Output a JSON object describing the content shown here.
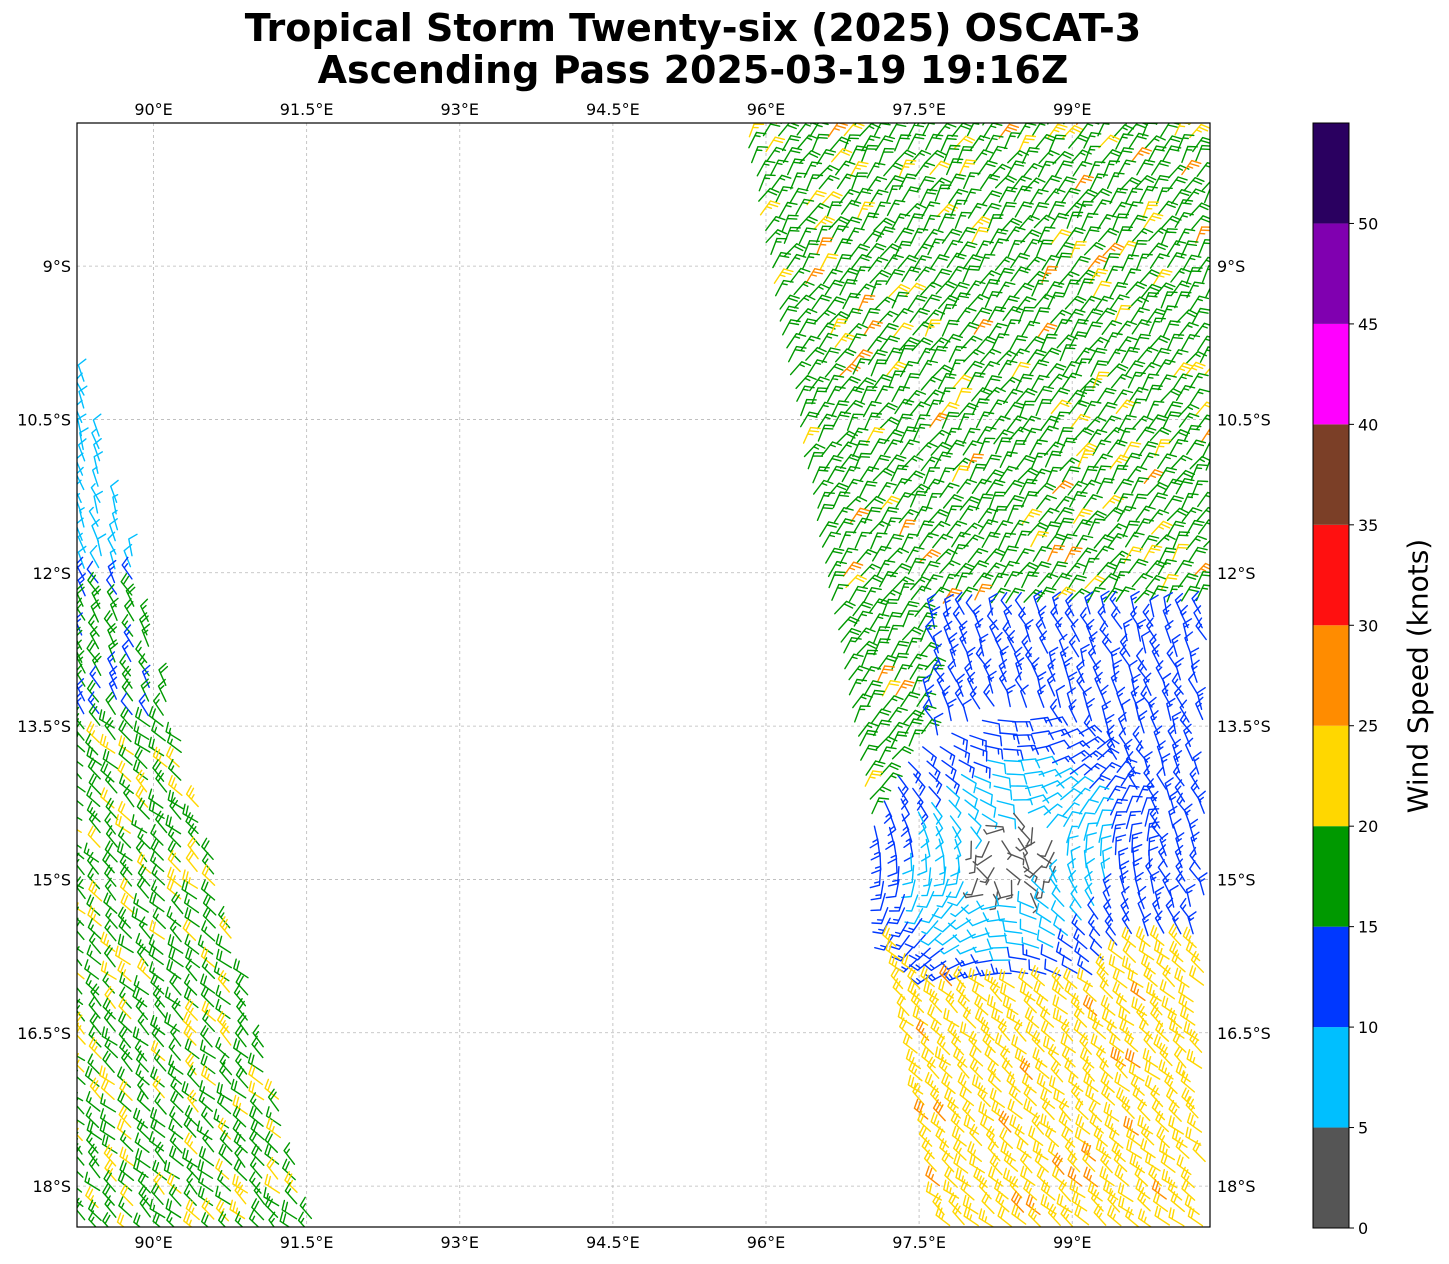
{
  "title": {
    "line1": "Tropical Storm Twenty-six (2025) OSCAT-3",
    "line2": "Ascending Pass 2025-03-19 19:16Z"
  },
  "map": {
    "lon_range": [
      89.25,
      100.35
    ],
    "lat_range": [
      -18.4,
      -7.6
    ],
    "lon_ticks": [
      90,
      91.5,
      93,
      94.5,
      96,
      97.5,
      99
    ],
    "lon_tick_labels": [
      "90°E",
      "91.5°E",
      "93°E",
      "94.5°E",
      "96°E",
      "97.5°E",
      "99°E"
    ],
    "lat_ticks": [
      -9,
      -10.5,
      -12,
      -13.5,
      -15,
      -16.5,
      -18
    ],
    "lat_tick_labels": [
      "9°S",
      "10.5°S",
      "12°S",
      "13.5°S",
      "15°S",
      "16.5°S",
      "18°S"
    ],
    "gridlines": true,
    "center_marker": {
      "lon": 98.4,
      "lat": -14.8
    }
  },
  "colorbar": {
    "label": "Wind Speed (knots)",
    "range": [
      0,
      55
    ],
    "bins": [
      {
        "from": 0,
        "to": 5,
        "color": "#555555"
      },
      {
        "from": 5,
        "to": 10,
        "color": "#00bfff"
      },
      {
        "from": 10,
        "to": 15,
        "color": "#0038ff"
      },
      {
        "from": 15,
        "to": 20,
        "color": "#009900"
      },
      {
        "from": 20,
        "to": 25,
        "color": "#ffd700"
      },
      {
        "from": 25,
        "to": 30,
        "color": "#ff8c00"
      },
      {
        "from": 30,
        "to": 35,
        "color": "#ff1010"
      },
      {
        "from": 35,
        "to": 40,
        "color": "#7b3f27"
      },
      {
        "from": 40,
        "to": 45,
        "color": "#ff00ff"
      },
      {
        "from": 45,
        "to": 50,
        "color": "#8000b0"
      },
      {
        "from": 50,
        "to": 55,
        "color": "#2a0060"
      }
    ],
    "ticks": [
      0,
      5,
      10,
      15,
      20,
      25,
      30,
      35,
      40,
      45,
      50
    ],
    "tick_labels": [
      "0",
      "5",
      "10",
      "15",
      "20",
      "25",
      "30",
      "35",
      "40",
      "45",
      "50"
    ]
  }
}
